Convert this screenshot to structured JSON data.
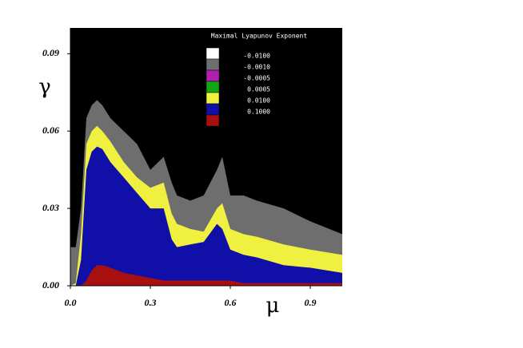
{
  "chart_data": {
    "type": "area",
    "xlabel": "μ",
    "ylabel": "γ",
    "background": "#000000",
    "xlim": [
      0,
      1.02
    ],
    "ylim": [
      0,
      0.1
    ],
    "xticks": [
      {
        "value": 0,
        "label": "0.0"
      },
      0.3,
      0.6,
      0.9
    ],
    "yticks": [
      {
        "value": 0,
        "label": "0.00"
      },
      0.03,
      0.06,
      0.09
    ],
    "x": [
      0,
      0.02,
      0.04,
      0.06,
      0.08,
      0.1,
      0.12,
      0.15,
      0.2,
      0.25,
      0.3,
      0.35,
      0.38,
      0.4,
      0.45,
      0.5,
      0.55,
      0.57,
      0.6,
      0.65,
      0.7,
      0.8,
      0.9,
      1.02
    ],
    "series": [
      {
        "color": "#6e6e6e",
        "values": [
          0.015,
          0.015,
          0.03,
          0.065,
          0.07,
          0.072,
          0.07,
          0.065,
          0.06,
          0.055,
          0.045,
          0.05,
          0.04,
          0.035,
          0.033,
          0.035,
          0.045,
          0.05,
          0.035,
          0.035,
          0.033,
          0.03,
          0.025,
          0.02
        ]
      },
      {
        "color": "#f0f040",
        "values": [
          0,
          0.001,
          0.02,
          0.055,
          0.06,
          0.062,
          0.06,
          0.056,
          0.048,
          0.042,
          0.038,
          0.04,
          0.028,
          0.024,
          0.022,
          0.021,
          0.03,
          0.032,
          0.022,
          0.02,
          0.019,
          0.016,
          0.014,
          0.012
        ]
      },
      {
        "color": "#1010a8",
        "values": [
          0,
          0,
          0.01,
          0.045,
          0.052,
          0.054,
          0.053,
          0.048,
          0.042,
          0.036,
          0.03,
          0.03,
          0.018,
          0.015,
          0.016,
          0.017,
          0.024,
          0.022,
          0.014,
          0.012,
          0.011,
          0.008,
          0.007,
          0.005
        ]
      },
      {
        "color": "#a81010",
        "values": [
          0,
          0,
          0,
          0.002,
          0.006,
          0.008,
          0.008,
          0.007,
          0.005,
          0.004,
          0.003,
          0.002,
          0.002,
          0.002,
          0.002,
          0.002,
          0.002,
          0.002,
          0.002,
          0.001,
          0.001,
          0.001,
          0.001,
          0.001
        ]
      }
    ],
    "legend": {
      "title": "Maximal Lyapunov Exponent",
      "colors": [
        "#ffffff",
        "#6e6e6e",
        "#b020b0",
        "#10a810",
        "#f0f040",
        "#1010a8",
        "#a81010"
      ],
      "thresholds": [
        {
          "value": -0.01,
          "label": "-0.0100"
        },
        {
          "value": -0.001,
          "label": "-0.0010"
        },
        {
          "value": -0.0005,
          "label": "-0.0005"
        },
        {
          "value": 0.0005,
          "label": "0.0005"
        },
        {
          "value": 0.01,
          "label": "0.0100"
        },
        {
          "value": 0.1,
          "label": "0.1000"
        }
      ]
    }
  }
}
